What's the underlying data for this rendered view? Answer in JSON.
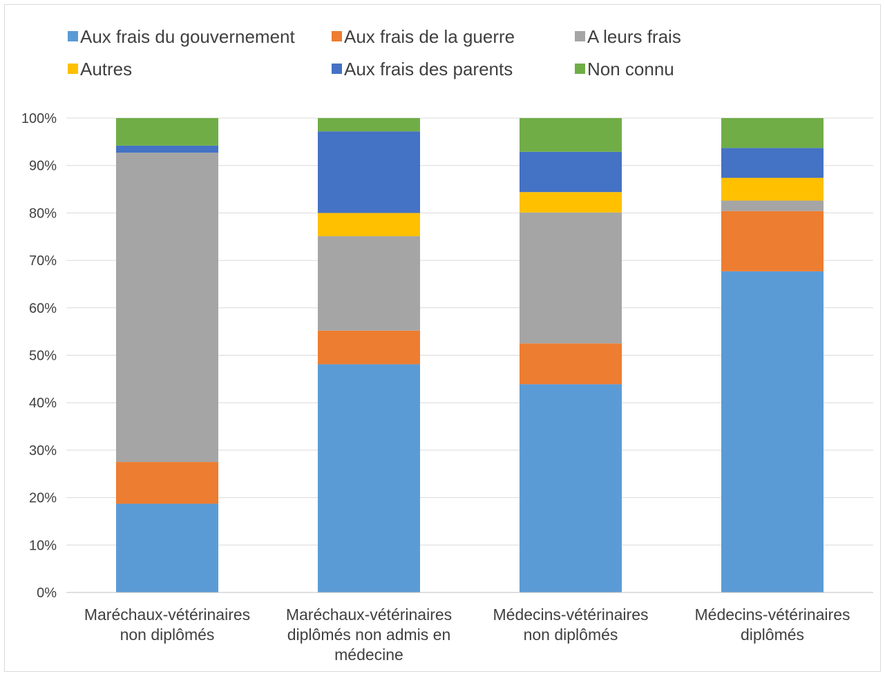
{
  "chart_data": {
    "type": "bar",
    "stacked": "percent",
    "categories": [
      [
        "Maréchaux-vétérinaires",
        "non diplômés"
      ],
      [
        "Maréchaux-vétérinaires",
        "diplômés non admis en",
        "médecine"
      ],
      [
        "Médecins-vétérinaires",
        "non diplômés"
      ],
      [
        "Médecins-vétérinaires",
        "diplômés"
      ]
    ],
    "series": [
      {
        "name": "Aux frais du gouvernement",
        "color": "#5b9bd5",
        "values": [
          18.7,
          48.1,
          43.9,
          67.7
        ]
      },
      {
        "name": "Aux frais de la guerre",
        "color": "#ed7d31",
        "values": [
          8.8,
          7.1,
          8.6,
          12.7
        ]
      },
      {
        "name": "A leurs frais",
        "color": "#a5a5a5",
        "values": [
          65.2,
          19.9,
          27.6,
          2.2
        ]
      },
      {
        "name": "Autres",
        "color": "#ffc000",
        "values": [
          0,
          4.9,
          4.3,
          4.8
        ]
      },
      {
        "name": "Aux frais des parents",
        "color": "#4472c4",
        "values": [
          1.5,
          17.2,
          8.5,
          6.3
        ]
      },
      {
        "name": "Non connu",
        "color": "#70ad47",
        "values": [
          5.8,
          2.8,
          7.1,
          6.3
        ]
      }
    ],
    "y_ticks": [
      "0%",
      "10%",
      "20%",
      "30%",
      "40%",
      "50%",
      "60%",
      "70%",
      "80%",
      "90%",
      "100%"
    ],
    "ylim": [
      0,
      100
    ],
    "grid": true,
    "legend_position": "top"
  }
}
